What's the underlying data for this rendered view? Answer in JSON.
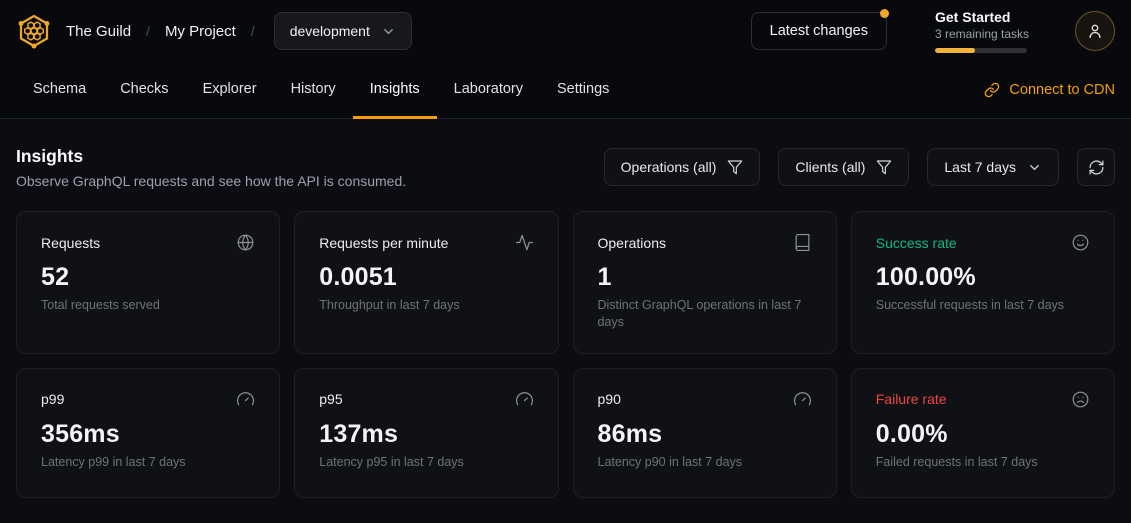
{
  "header": {
    "breadcrumb": {
      "org": "The Guild",
      "separator": "/",
      "project": "My Project"
    },
    "target_selector": {
      "value": "development",
      "icon": "chevron-down-icon"
    },
    "latest_changes": {
      "label": "Latest changes",
      "notification_dot": true
    },
    "get_started": {
      "title": "Get Started",
      "subtitle": "3 remaining tasks",
      "progress_percent": 44
    },
    "avatar_icon": "user-icon",
    "logo_icon": "hive-logo-icon"
  },
  "tabs": {
    "items": [
      {
        "label": "Schema",
        "active": false
      },
      {
        "label": "Checks",
        "active": false
      },
      {
        "label": "Explorer",
        "active": false
      },
      {
        "label": "History",
        "active": false
      },
      {
        "label": "Insights",
        "active": true
      },
      {
        "label": "Laboratory",
        "active": false
      },
      {
        "label": "Settings",
        "active": false
      }
    ],
    "cdn_link": {
      "label": "Connect to CDN",
      "icon": "link-icon"
    }
  },
  "insights": {
    "title": "Insights",
    "description": "Observe GraphQL requests and see how the API is consumed.",
    "filters": {
      "operations": {
        "label": "Operations (all)",
        "icon": "filter-icon"
      },
      "clients": {
        "label": "Clients (all)",
        "icon": "filter-icon"
      },
      "period": {
        "label": "Last 7 days",
        "icon": "chevron-down-icon"
      },
      "refresh_icon": "refresh-icon"
    }
  },
  "cards": [
    {
      "title": "Requests",
      "value": "52",
      "subtitle": "Total requests served",
      "icon": "globe-icon",
      "accent": "default"
    },
    {
      "title": "Requests per minute",
      "value": "0.0051",
      "subtitle": "Throughput in last 7 days",
      "icon": "activity-icon",
      "accent": "default"
    },
    {
      "title": "Operations",
      "value": "1",
      "subtitle": "Distinct GraphQL operations in last 7 days",
      "icon": "book-icon",
      "accent": "default"
    },
    {
      "title": "Success rate",
      "value": "100.00%",
      "subtitle": "Successful requests in last 7 days",
      "icon": "smile-icon",
      "accent": "success"
    },
    {
      "title": "p99",
      "value": "356ms",
      "subtitle": "Latency p99 in last 7 days",
      "icon": "gauge-icon",
      "accent": "default"
    },
    {
      "title": "p95",
      "value": "137ms",
      "subtitle": "Latency p95 in last 7 days",
      "icon": "gauge-icon",
      "accent": "default"
    },
    {
      "title": "p90",
      "value": "86ms",
      "subtitle": "Latency p90 in last 7 days",
      "icon": "gauge-icon",
      "accent": "default"
    },
    {
      "title": "Failure rate",
      "value": "0.00%",
      "subtitle": "Failed requests in last 7 days",
      "icon": "frown-icon",
      "accent": "danger"
    }
  ],
  "colors": {
    "accent": "#f59e0b",
    "logo": "#f0a62b",
    "success": "#10b981",
    "danger": "#ef4444",
    "background": "#0b0d12",
    "card_background": "#0f1115"
  }
}
